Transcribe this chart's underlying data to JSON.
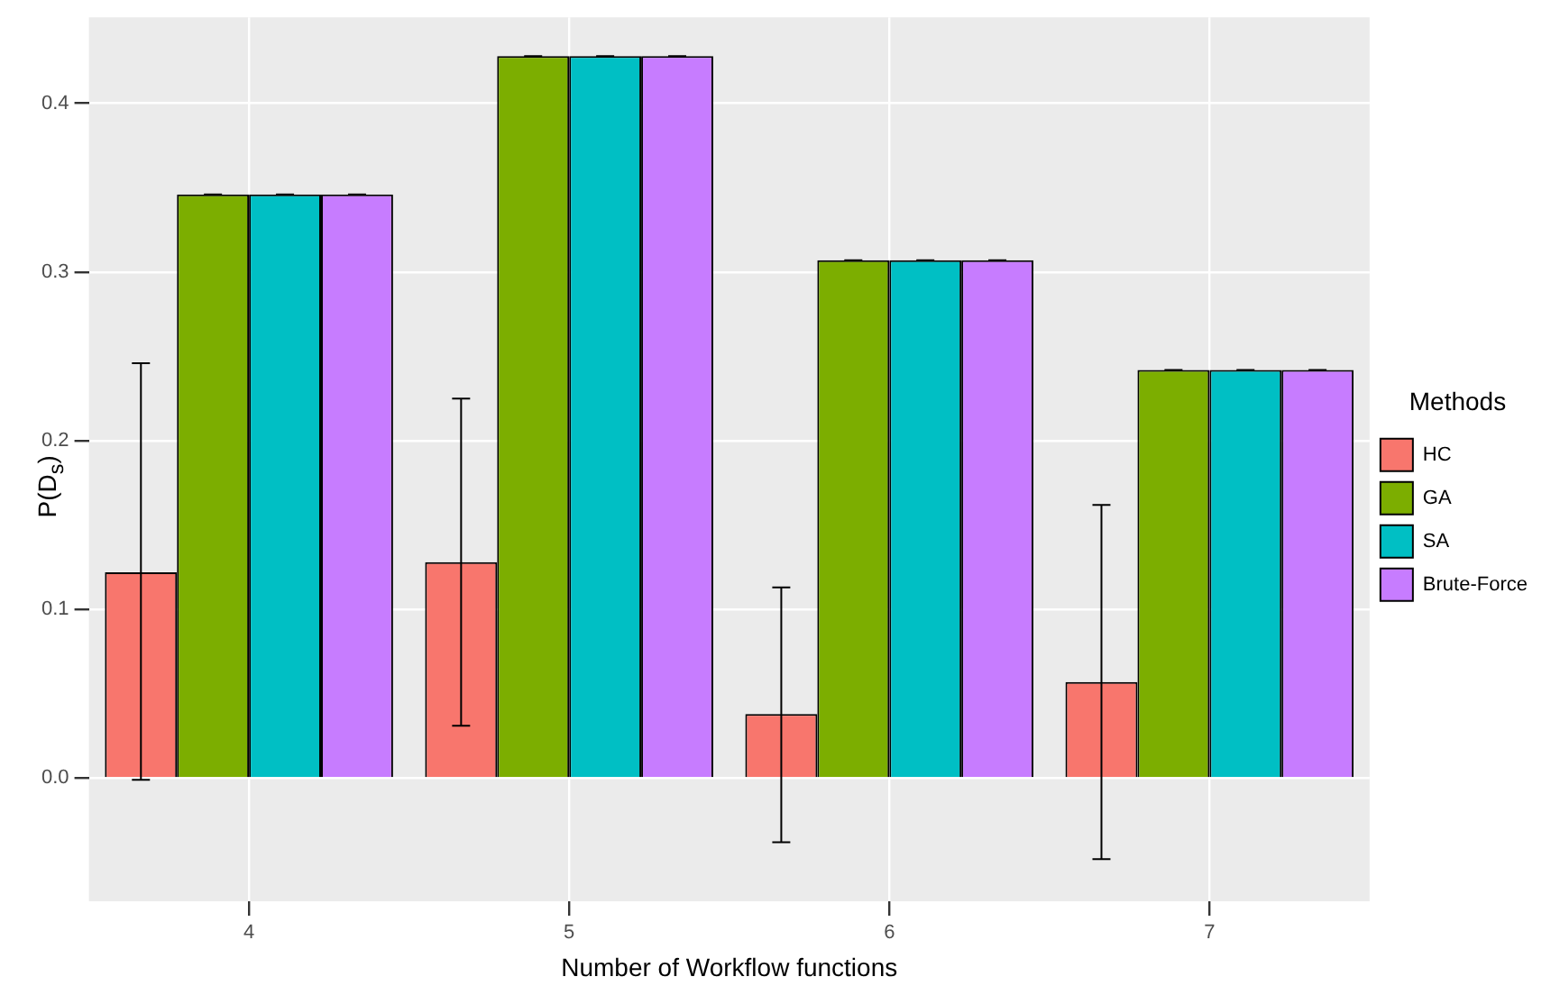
{
  "chart_data": {
    "type": "bar",
    "xlabel": "Number of Workflow functions",
    "ylabel": "P(D$_{s}$)",
    "legend_title": "Methods",
    "legend": "right",
    "grid": true,
    "categories": [
      "4",
      "5",
      "6",
      "7"
    ],
    "series": [
      {
        "name": "HC",
        "color": "#f8766d",
        "values": [
          0.122,
          0.128,
          0.038,
          0.057
        ],
        "errors": [
          [
            -0.001,
            0.246
          ],
          [
            0.031,
            0.225
          ],
          [
            -0.038,
            0.113
          ],
          [
            -0.048,
            0.162
          ]
        ]
      },
      {
        "name": "GA",
        "color": "#7cae00",
        "values": [
          0.346,
          0.428,
          0.307,
          0.242
        ],
        "errors": [
          0,
          0,
          0,
          0
        ]
      },
      {
        "name": "SA",
        "color": "#00bfc4",
        "values": [
          0.346,
          0.428,
          0.307,
          0.242
        ],
        "errors": [
          0,
          0,
          0,
          0
        ]
      },
      {
        "name": "Brute-Force",
        "color": "#c77cff",
        "values": [
          0.346,
          0.428,
          0.307,
          0.242
        ],
        "errors": [
          0,
          0,
          0,
          0
        ]
      }
    ],
    "ylim": [
      -0.073,
      0.451
    ],
    "yticks": [
      {
        "value": 0,
        "label": "0.0"
      },
      0.1,
      0.2,
      0.3,
      0.4
    ]
  }
}
